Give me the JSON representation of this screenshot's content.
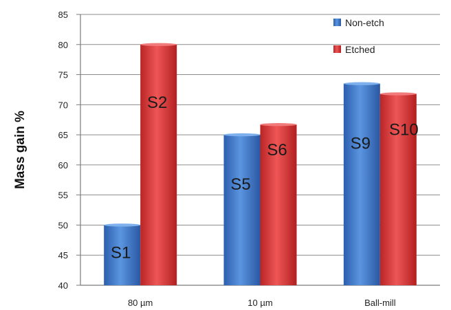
{
  "chart_data": {
    "type": "bar",
    "categories": [
      "80 µm",
      "10 µm",
      "Ball-mill"
    ],
    "series": [
      {
        "name": "Non-etch",
        "values": [
          50,
          65,
          73.5
        ],
        "labels": [
          "S1",
          "S5",
          "S9"
        ],
        "color": "#3f76c7"
      },
      {
        "name": "Etched",
        "values": [
          80,
          66.7,
          71.8
        ],
        "labels": [
          "S2",
          "S6",
          "S10"
        ],
        "color": "#d63636"
      }
    ],
    "title": "",
    "xlabel": "",
    "ylabel": "Mass gain %",
    "ylim": [
      40,
      85
    ],
    "yticks": [
      40,
      45,
      50,
      55,
      60,
      65,
      70,
      75,
      80,
      85
    ],
    "grid": true,
    "legend_position": "top-right"
  }
}
